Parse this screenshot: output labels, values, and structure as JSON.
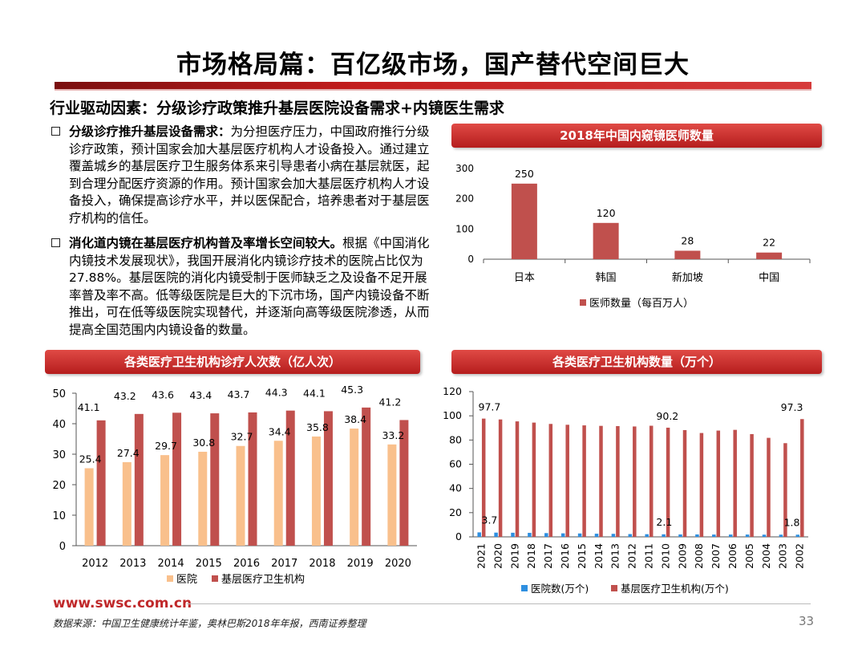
{
  "page": {
    "title": "市场格局篇：百亿级市场，国产替代空间巨大",
    "subtitle": "行业驱动因素：分级诊疗政策推升基层医院设备需求+内镜医生需求",
    "paragraphs": [
      {
        "bold": "分级诊疗推升基层设备需求：",
        "text": "为分担医疗压力，中国政府推行分级诊疗政策，预计国家会加大基层医疗机构人才设备投入。通过建立覆盖城乡的基层医疗卫生服务体系来引导患者小病在基层就医，起到合理分配医疗资源的作用。预计国家会加大基层医疗机构人才设备投入，确保提高诊疗水平，并以医保配合，培养患者对于基层医疗机构的信任。"
      },
      {
        "bold": "消化道内镜在基层医疗机构普及率增长空间较大。",
        "text": "根据《中国消化内镜技术发展现状》，我国开展消化内镜诊疗技术的医院占比仅为 27.88%。基层医院的消化内镜受制于医师缺乏之及设备不足开展率普及率不高。低等级医院是巨大的下沉市场，国产内镜设备不断推出，可在低等级医院实现替代，并逐渐向高等级医院渗透，从而提高全国范围内内镜设备的数量。"
      }
    ],
    "footer": {
      "url": "www.swsc.com.cn",
      "source": "数据来源：中国卫生健康统计年鉴，奥林巴斯2018年年报，西南证券整理",
      "page_number": "33"
    },
    "colors": {
      "bar_red": "#c0504d",
      "bar_peach": "#f9c08c",
      "bar_blue": "#2e8fe0",
      "brand_red": "#c0282a"
    }
  },
  "chart_data": [
    {
      "type": "bar",
      "title": "2018年中国内窥镜医师数量",
      "categories": [
        "日本",
        "韩国",
        "新加坡",
        "中国"
      ],
      "series": [
        {
          "name": "医师数量（每百万人）",
          "values": [
            250,
            120,
            28,
            22
          ]
        }
      ],
      "ylim": [
        0,
        300
      ],
      "yticks": [
        0,
        100,
        200,
        300
      ],
      "xlabel": "",
      "ylabel": "",
      "legend": "bottom"
    },
    {
      "type": "bar",
      "title": "各类医疗卫生机构诊疗人次数（亿人次）",
      "categories": [
        "2012",
        "2013",
        "2014",
        "2015",
        "2016",
        "2017",
        "2018",
        "2019",
        "2020"
      ],
      "series": [
        {
          "name": "医院",
          "values": [
            25.4,
            27.4,
            29.7,
            30.8,
            32.7,
            34.4,
            35.8,
            38.4,
            33.2
          ]
        },
        {
          "name": "基层医疗卫生机构",
          "values": [
            41.1,
            43.2,
            43.6,
            43.4,
            43.7,
            44.3,
            44.1,
            45.3,
            41.2
          ]
        }
      ],
      "ylim": [
        0,
        50
      ],
      "yticks": [
        0,
        10,
        20,
        30,
        40,
        50
      ],
      "xlabel": "",
      "ylabel": "",
      "legend": "bottom"
    },
    {
      "type": "bar",
      "title": "各类医疗卫生机构数量（万个）",
      "categories": [
        "2021",
        "2020",
        "2019",
        "2018",
        "2017",
        "2016",
        "2015",
        "2014",
        "2013",
        "2012",
        "2011",
        "2010",
        "2009",
        "2008",
        "2007",
        "2006",
        "2005",
        "2004",
        "2003",
        "2002"
      ],
      "series": [
        {
          "name": "医院数(万个)",
          "values": [
            3.7,
            3.5,
            3.4,
            3.3,
            3.1,
            2.9,
            2.8,
            2.6,
            2.5,
            2.3,
            2.2,
            2.1,
            2.0,
            2.0,
            1.9,
            1.9,
            1.9,
            1.8,
            1.8,
            1.8
          ]
        },
        {
          "name": "基层医疗卫生机构(万个)",
          "values": [
            97.7,
            97.0,
            95.4,
            94.4,
            93.3,
            92.6,
            92.1,
            91.7,
            91.5,
            91.2,
            91.8,
            90.2,
            88.2,
            85.8,
            87.8,
            88.4,
            84.9,
            81.8,
            77.4,
            97.3
          ]
        }
      ],
      "labeled_points": [
        {
          "series": 1,
          "index": 0,
          "label": "97.7"
        },
        {
          "series": 1,
          "index": 11,
          "label": "90.2"
        },
        {
          "series": 1,
          "index": 19,
          "label": "97.3"
        },
        {
          "series": 0,
          "index": 0,
          "label": "3.7"
        },
        {
          "series": 0,
          "index": 11,
          "label": "2.1"
        },
        {
          "series": 0,
          "index": 19,
          "label": "1.8"
        }
      ],
      "ylim": [
        0,
        120
      ],
      "yticks": [
        0,
        20,
        40,
        60,
        80,
        100,
        120
      ],
      "xlabel": "",
      "ylabel": "",
      "legend": "bottom"
    }
  ]
}
